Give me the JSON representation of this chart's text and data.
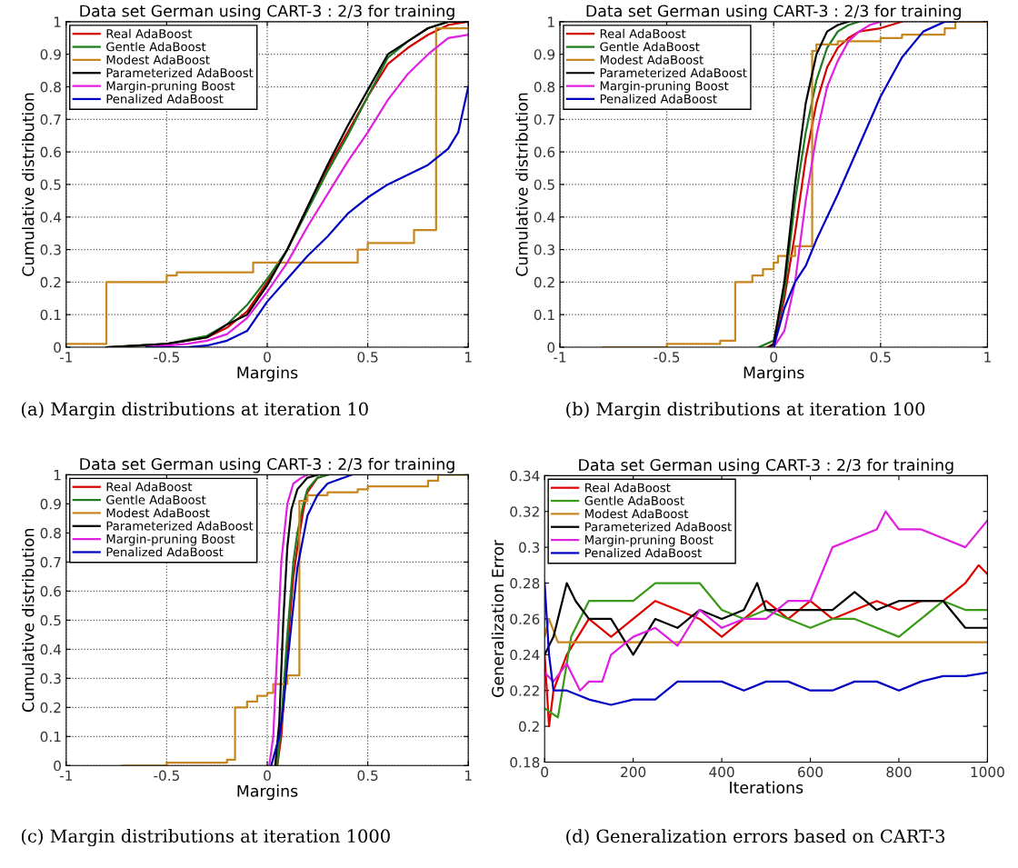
{
  "chart_data": [
    {
      "type": "line",
      "title": "Data set German using CART-3 : 2/3 for training",
      "xlabel": "Margins",
      "ylabel": "Cumulative distribution",
      "xlim": [
        -1,
        1
      ],
      "ylim": [
        0,
        1
      ],
      "xticks": [
        -1,
        -0.5,
        0,
        0.5,
        1
      ],
      "yticks": [
        0,
        0.1,
        0.2,
        0.3,
        0.4,
        0.5,
        0.6,
        0.7,
        0.8,
        0.9,
        1
      ],
      "grid": true,
      "legend": "top left",
      "line_style": "solid",
      "annotations": [
        "(a) Margin distributions at iteration 10"
      ],
      "series": [
        {
          "name": "Real AdaBoost",
          "color": "#d40000",
          "x": [
            -0.8,
            -0.5,
            -0.3,
            -0.2,
            -0.1,
            0,
            0.1,
            0.2,
            0.3,
            0.4,
            0.5,
            0.6,
            0.7,
            0.8,
            0.9,
            1
          ],
          "values": [
            0,
            0.01,
            0.03,
            0.06,
            0.11,
            0.2,
            0.3,
            0.43,
            0.55,
            0.66,
            0.77,
            0.87,
            0.92,
            0.96,
            0.99,
            1
          ]
        },
        {
          "name": "Gentle AdaBoost",
          "color": "#1e7a1e",
          "x": [
            -0.8,
            -0.5,
            -0.3,
            -0.2,
            -0.1,
            0,
            0.1,
            0.2,
            0.3,
            0.4,
            0.5,
            0.6,
            0.7,
            0.8,
            0.9,
            1
          ],
          "values": [
            0,
            0.01,
            0.035,
            0.07,
            0.13,
            0.21,
            0.3,
            0.42,
            0.54,
            0.65,
            0.77,
            0.89,
            0.94,
            0.98,
            1,
            1
          ]
        },
        {
          "name": "Modest AdaBoost",
          "type": "step",
          "color": "#c8861e",
          "x": [
            -1,
            -0.8,
            -0.5,
            -0.45,
            -0.07,
            0.45,
            0.5,
            0.73,
            0.84,
            1
          ],
          "values": [
            0.01,
            0.2,
            0.22,
            0.23,
            0.26,
            0.3,
            0.32,
            0.36,
            0.98,
            0.98
          ]
        },
        {
          "name": "Parameterized AdaBoost",
          "color": "#000000",
          "x": [
            -0.8,
            -0.5,
            -0.3,
            -0.2,
            -0.1,
            0,
            0.1,
            0.2,
            0.3,
            0.4,
            0.5,
            0.6,
            0.7,
            0.8,
            0.9,
            1
          ],
          "values": [
            0,
            0.01,
            0.03,
            0.07,
            0.1,
            0.19,
            0.3,
            0.43,
            0.56,
            0.68,
            0.79,
            0.9,
            0.94,
            0.98,
            1,
            1
          ]
        },
        {
          "name": "Margin-pruning Boost",
          "color": "#e020e0",
          "x": [
            -0.6,
            -0.4,
            -0.3,
            -0.2,
            -0.1,
            0,
            0.1,
            0.2,
            0.3,
            0.4,
            0.5,
            0.6,
            0.7,
            0.8,
            0.9,
            1
          ],
          "values": [
            0,
            0.01,
            0.02,
            0.04,
            0.09,
            0.17,
            0.26,
            0.37,
            0.47,
            0.57,
            0.66,
            0.76,
            0.84,
            0.9,
            0.95,
            0.96
          ]
        },
        {
          "name": "Penalized AdaBoost",
          "color": "#0000c0",
          "x": [
            -0.6,
            -0.4,
            -0.3,
            -0.2,
            -0.1,
            0,
            0.1,
            0.2,
            0.3,
            0.4,
            0.5,
            0.6,
            0.7,
            0.8,
            0.9,
            0.95,
            1
          ],
          "values": [
            0,
            0,
            0.005,
            0.02,
            0.05,
            0.14,
            0.21,
            0.28,
            0.34,
            0.41,
            0.46,
            0.5,
            0.53,
            0.56,
            0.61,
            0.66,
            0.8
          ]
        }
      ]
    },
    {
      "type": "line",
      "title": "Data set German using CART-3 : 2/3 for training",
      "xlabel": "Margins",
      "ylabel": "Cumulative distribution",
      "xlim": [
        -1,
        1
      ],
      "ylim": [
        0,
        1
      ],
      "xticks": [
        -1,
        -0.5,
        0,
        0.5,
        1
      ],
      "yticks": [
        0,
        0.1,
        0.2,
        0.3,
        0.4,
        0.5,
        0.6,
        0.7,
        0.8,
        0.9,
        1
      ],
      "grid": true,
      "legend": "top left",
      "line_style": "solid",
      "annotations": [
        "(b) Margin distributions at iteration 100"
      ],
      "series": [
        {
          "name": "Real AdaBoost",
          "color": "#d40000",
          "x": [
            -0.03,
            0,
            0.05,
            0.1,
            0.15,
            0.2,
            0.25,
            0.3,
            0.35,
            0.4,
            0.5,
            0.6
          ],
          "values": [
            0,
            0.01,
            0.15,
            0.35,
            0.58,
            0.75,
            0.86,
            0.92,
            0.95,
            0.97,
            0.98,
            1
          ]
        },
        {
          "name": "Gentle AdaBoost",
          "color": "#1e7a1e",
          "x": [
            -0.07,
            0,
            0.05,
            0.1,
            0.15,
            0.2,
            0.25,
            0.3,
            0.35,
            0.4
          ],
          "values": [
            0,
            0.02,
            0.17,
            0.45,
            0.66,
            0.82,
            0.92,
            0.97,
            0.99,
            1
          ]
        },
        {
          "name": "Modest AdaBoost",
          "type": "step",
          "color": "#c8861e",
          "x": [
            -0.8,
            -0.5,
            -0.25,
            -0.18,
            -0.1,
            -0.05,
            0,
            0.02,
            0.1,
            0.18,
            0.2,
            0.3,
            0.5,
            0.6,
            0.8,
            0.85,
            1
          ],
          "values": [
            0,
            0.01,
            0.02,
            0.2,
            0.22,
            0.24,
            0.26,
            0.28,
            0.31,
            0.91,
            0.93,
            0.94,
            0.95,
            0.96,
            0.98,
            1,
            1
          ]
        },
        {
          "name": "Parameterized AdaBoost",
          "color": "#000000",
          "x": [
            -0.02,
            0,
            0.05,
            0.1,
            0.15,
            0.2,
            0.25,
            0.3,
            0.35
          ],
          "values": [
            0,
            0.01,
            0.2,
            0.5,
            0.75,
            0.9,
            0.97,
            0.99,
            1
          ]
        },
        {
          "name": "Margin-pruning Boost",
          "color": "#e020e0",
          "x": [
            0,
            0.05,
            0.1,
            0.15,
            0.2,
            0.25,
            0.3,
            0.35,
            0.4,
            0.45,
            0.5
          ],
          "values": [
            0,
            0.05,
            0.2,
            0.45,
            0.65,
            0.8,
            0.88,
            0.94,
            0.97,
            0.99,
            1
          ]
        },
        {
          "name": "Penalized AdaBoost",
          "color": "#0000c0",
          "x": [
            0,
            0.05,
            0.1,
            0.15,
            0.2,
            0.3,
            0.4,
            0.5,
            0.6,
            0.7,
            0.8,
            0.85
          ],
          "values": [
            0,
            0.12,
            0.2,
            0.25,
            0.33,
            0.47,
            0.62,
            0.77,
            0.89,
            0.97,
            1,
            1
          ]
        }
      ]
    },
    {
      "type": "line",
      "title": "Data set German using CART-3 : 2/3 for training",
      "xlabel": "Margins",
      "ylabel": "Cumulative distribution",
      "xlim": [
        -1,
        1
      ],
      "ylim": [
        0,
        1
      ],
      "xticks": [
        -1,
        -0.5,
        0,
        0.5,
        1
      ],
      "yticks": [
        0,
        0.1,
        0.2,
        0.3,
        0.4,
        0.5,
        0.6,
        0.7,
        0.8,
        0.9,
        1
      ],
      "grid": true,
      "legend": "top left",
      "line_style": "solid",
      "annotations": [
        "(c) Margin distributions at iteration 1000"
      ],
      "series": [
        {
          "name": "Real AdaBoost",
          "color": "#d40000",
          "x": [
            0.05,
            0.07,
            0.1,
            0.13,
            0.15,
            0.18,
            0.2,
            0.25,
            0.3
          ],
          "values": [
            0,
            0.1,
            0.4,
            0.65,
            0.75,
            0.88,
            0.94,
            0.99,
            1
          ]
        },
        {
          "name": "Gentle AdaBoost",
          "color": "#1e7a1e",
          "x": [
            0.05,
            0.07,
            0.1,
            0.13,
            0.15,
            0.18,
            0.2,
            0.25,
            0.3
          ],
          "values": [
            0,
            0.15,
            0.45,
            0.7,
            0.8,
            0.9,
            0.95,
            0.99,
            1
          ]
        },
        {
          "name": "Modest AdaBoost",
          "type": "step",
          "color": "#c8861e",
          "x": [
            -0.72,
            -0.5,
            -0.2,
            -0.16,
            -0.1,
            -0.05,
            0,
            0.03,
            0.1,
            0.16,
            0.2,
            0.3,
            0.45,
            0.5,
            0.8,
            0.85,
            1
          ],
          "values": [
            0,
            0.01,
            0.02,
            0.2,
            0.22,
            0.24,
            0.25,
            0.28,
            0.31,
            0.91,
            0.93,
            0.94,
            0.95,
            0.96,
            0.98,
            1,
            1
          ]
        },
        {
          "name": "Parameterized AdaBoost",
          "color": "#000000",
          "x": [
            0.04,
            0.06,
            0.08,
            0.1,
            0.12,
            0.15,
            0.2,
            0.25
          ],
          "values": [
            0,
            0.15,
            0.5,
            0.75,
            0.88,
            0.95,
            0.99,
            1
          ]
        },
        {
          "name": "Margin-pruning Boost",
          "color": "#e020e0",
          "x": [
            0.01,
            0.03,
            0.05,
            0.07,
            0.1,
            0.13,
            0.17,
            0.2
          ],
          "values": [
            0,
            0.1,
            0.4,
            0.7,
            0.9,
            0.97,
            0.99,
            1
          ]
        },
        {
          "name": "Penalized AdaBoost",
          "color": "#0000c0",
          "x": [
            0.02,
            0.06,
            0.08,
            0.1,
            0.13,
            0.15,
            0.2,
            0.25,
            0.3,
            0.4,
            0.42
          ],
          "values": [
            0,
            0.1,
            0.2,
            0.35,
            0.55,
            0.68,
            0.86,
            0.93,
            0.97,
            0.995,
            1
          ]
        }
      ]
    },
    {
      "type": "line",
      "title": "Data set German using CART-3 : 2/3 for training",
      "xlabel": "Iterations",
      "ylabel": "Generalization Error",
      "xlim": [
        0,
        1000
      ],
      "ylim": [
        0.18,
        0.34
      ],
      "xticks": [
        0,
        200,
        400,
        600,
        800,
        1000
      ],
      "yticks": [
        0.18,
        0.2,
        0.22,
        0.24,
        0.26,
        0.28,
        0.3,
        0.32,
        0.34
      ],
      "grid": false,
      "legend": "top left",
      "line_style": "solid",
      "annotations": [
        "(d) Generalization errors based on CART-3"
      ],
      "series": [
        {
          "name": "Real AdaBoost",
          "color": "#e00000",
          "x": [
            0,
            10,
            20,
            50,
            100,
            150,
            200,
            250,
            300,
            350,
            400,
            450,
            500,
            550,
            600,
            650,
            700,
            750,
            800,
            850,
            900,
            950,
            980,
            1000
          ],
          "values": [
            0.24,
            0.2,
            0.22,
            0.24,
            0.26,
            0.25,
            0.26,
            0.27,
            0.265,
            0.26,
            0.25,
            0.26,
            0.27,
            0.26,
            0.27,
            0.26,
            0.265,
            0.27,
            0.265,
            0.27,
            0.27,
            0.28,
            0.29,
            0.285
          ]
        },
        {
          "name": "Gentle AdaBoost",
          "color": "#3a9a1a",
          "x": [
            0,
            30,
            60,
            100,
            150,
            200,
            250,
            300,
            350,
            400,
            450,
            500,
            550,
            600,
            650,
            700,
            750,
            800,
            850,
            900,
            950,
            1000
          ],
          "values": [
            0.21,
            0.205,
            0.25,
            0.27,
            0.27,
            0.27,
            0.28,
            0.28,
            0.28,
            0.265,
            0.26,
            0.265,
            0.26,
            0.255,
            0.26,
            0.26,
            0.255,
            0.25,
            0.26,
            0.27,
            0.265,
            0.265
          ]
        },
        {
          "name": "Modest AdaBoost",
          "color": "#c8861e",
          "x": [
            0,
            10,
            30,
            100,
            1000
          ],
          "values": [
            0.25,
            0.26,
            0.247,
            0.247,
            0.247
          ]
        },
        {
          "name": "Parameterized AdaBoost",
          "color": "#000000",
          "x": [
            0,
            20,
            50,
            70,
            100,
            150,
            200,
            250,
            300,
            350,
            400,
            450,
            480,
            500,
            550,
            600,
            650,
            700,
            750,
            800,
            850,
            900,
            950,
            1000
          ],
          "values": [
            0.24,
            0.25,
            0.28,
            0.27,
            0.26,
            0.26,
            0.24,
            0.26,
            0.255,
            0.265,
            0.26,
            0.265,
            0.28,
            0.265,
            0.265,
            0.265,
            0.265,
            0.275,
            0.265,
            0.27,
            0.27,
            0.27,
            0.255,
            0.255
          ]
        },
        {
          "name": "Margin-pruning Boost",
          "color": "#e020e0",
          "x": [
            0,
            20,
            50,
            80,
            100,
            130,
            150,
            200,
            250,
            300,
            350,
            400,
            450,
            500,
            550,
            600,
            650,
            700,
            750,
            770,
            800,
            850,
            900,
            950,
            1000
          ],
          "values": [
            0.23,
            0.225,
            0.235,
            0.22,
            0.225,
            0.225,
            0.24,
            0.25,
            0.255,
            0.245,
            0.265,
            0.255,
            0.26,
            0.26,
            0.27,
            0.27,
            0.3,
            0.305,
            0.31,
            0.32,
            0.31,
            0.31,
            0.305,
            0.3,
            0.315
          ]
        },
        {
          "name": "Penalized AdaBoost",
          "color": "#0000c0",
          "x": [
            0,
            10,
            20,
            50,
            100,
            150,
            200,
            250,
            300,
            350,
            400,
            450,
            500,
            550,
            600,
            650,
            700,
            750,
            800,
            850,
            900,
            950,
            1000
          ],
          "values": [
            0.28,
            0.24,
            0.22,
            0.22,
            0.215,
            0.212,
            0.215,
            0.215,
            0.225,
            0.225,
            0.225,
            0.22,
            0.225,
            0.225,
            0.22,
            0.22,
            0.225,
            0.225,
            0.22,
            0.225,
            0.228,
            0.228,
            0.23
          ]
        }
      ]
    }
  ]
}
